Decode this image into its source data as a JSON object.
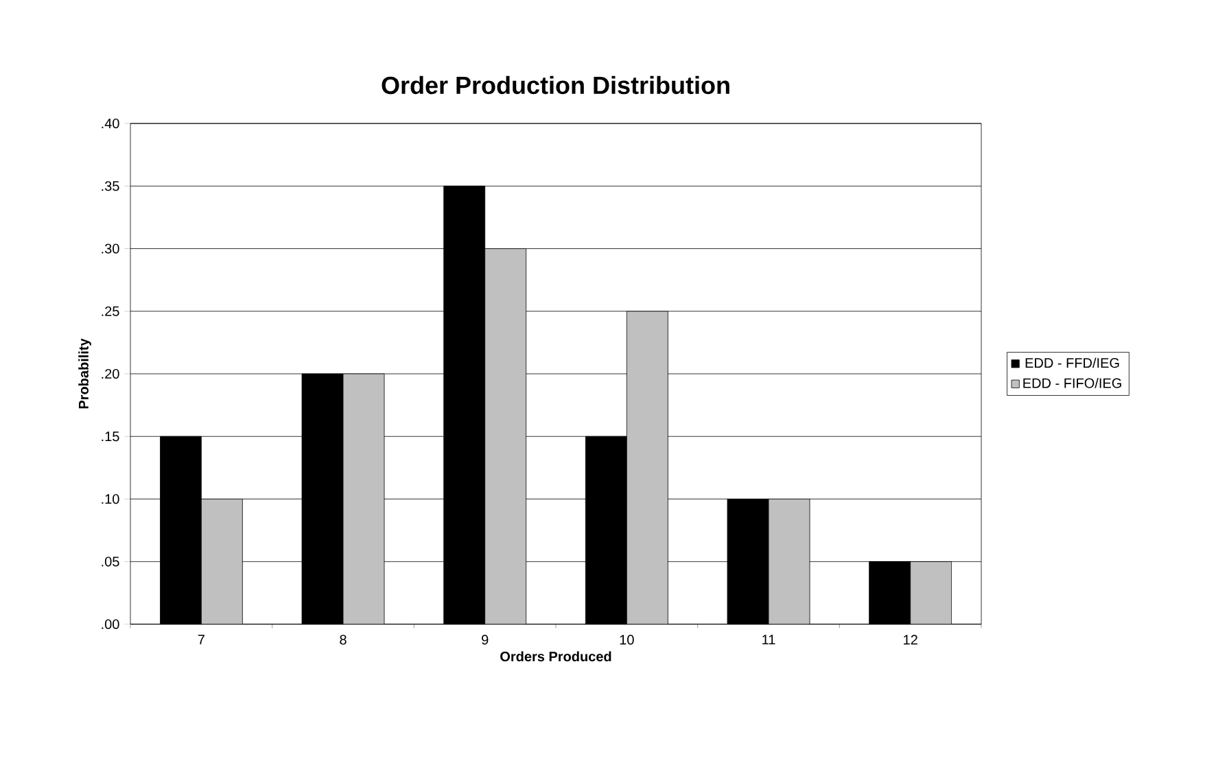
{
  "chart_data": {
    "type": "bar",
    "title": "Order Production Distribution",
    "xlabel": "Orders Produced",
    "ylabel": "Probability",
    "categories": [
      "7",
      "8",
      "9",
      "10",
      "11",
      "12"
    ],
    "series": [
      {
        "name": "EDD - FFD/IEG",
        "color": "#000000",
        "values": [
          0.15,
          0.2,
          0.35,
          0.15,
          0.1,
          0.05
        ]
      },
      {
        "name": "EDD - FIFO/IEG",
        "color": "#c0c0c0",
        "values": [
          0.1,
          0.2,
          0.3,
          0.25,
          0.1,
          0.05
        ]
      }
    ],
    "ylim": [
      0,
      0.4
    ],
    "yticks": [
      {
        "value": 0,
        "label": ".00"
      },
      {
        "value": 0.05,
        "label": ".05"
      },
      {
        "value": 0.1,
        "label": ".10"
      },
      {
        "value": 0.15,
        "label": ".15"
      },
      {
        "value": 0.2,
        "label": ".20"
      },
      {
        "value": 0.25,
        "label": ".25"
      },
      {
        "value": 0.3,
        "label": ".30"
      },
      {
        "value": 0.35,
        "label": ".35"
      },
      {
        "value": 0.4,
        "label": ".40"
      }
    ],
    "grid": "y",
    "legend": "right"
  }
}
